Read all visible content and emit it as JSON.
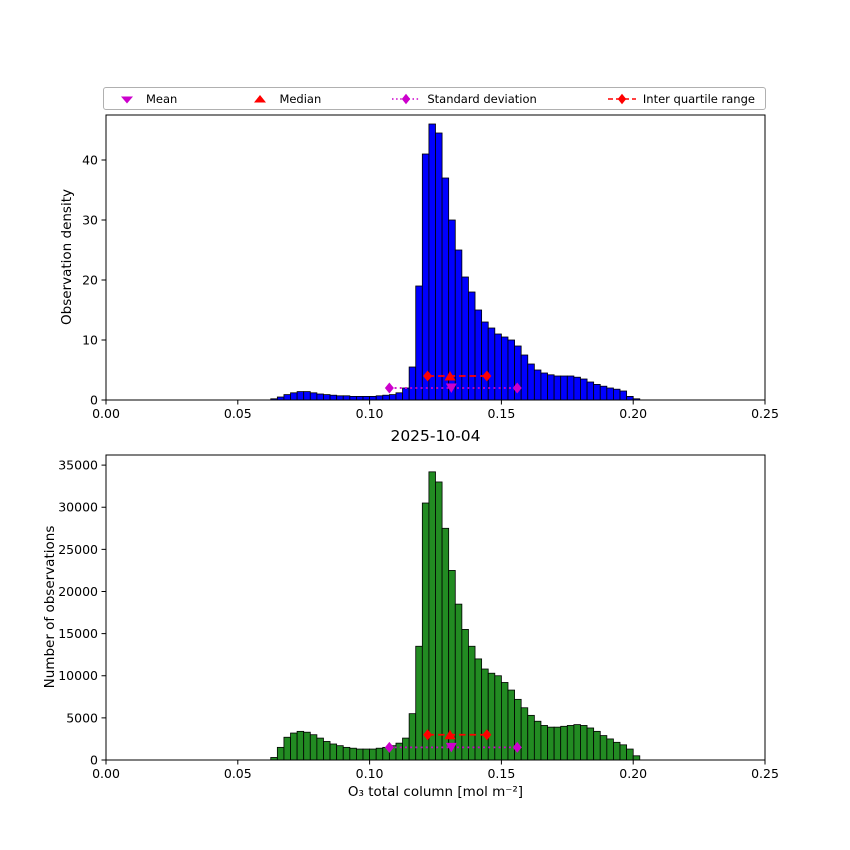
{
  "figure": {
    "colors": {
      "mean": "#cc00cc",
      "median": "#ff0000",
      "std": "#cc00cc",
      "iqr": "#ff0000",
      "bar_edge": "#000000"
    },
    "legend": {
      "items": [
        {
          "label": "Mean",
          "marker": "triangle-down",
          "color": "#cc00cc",
          "line": "none"
        },
        {
          "label": "Median",
          "marker": "triangle-up",
          "color": "#ff0000",
          "line": "none"
        },
        {
          "label": "Standard deviation",
          "marker": "diamond",
          "color": "#cc00cc",
          "line": "dotted"
        },
        {
          "label": "Inter quartile range",
          "marker": "diamond",
          "color": "#ff0000",
          "line": "dashed"
        }
      ]
    }
  },
  "chart_data": [
    {
      "type": "bar",
      "id": "density",
      "ylabel": "Observation density",
      "bar_color": "#0000ff",
      "bin_start": 0.0625,
      "bin_width": 0.0025,
      "values": [
        0.2,
        0.5,
        0.9,
        1.2,
        1.4,
        1.4,
        1.2,
        1.0,
        0.9,
        0.8,
        0.7,
        0.7,
        0.6,
        0.6,
        0.6,
        0.6,
        0.7,
        0.8,
        0.9,
        1.2,
        2.0,
        5.5,
        19,
        41,
        46,
        44.5,
        37,
        30,
        25,
        20.5,
        18,
        15,
        13,
        12,
        11,
        10.5,
        10,
        9,
        7.5,
        6,
        5,
        4.5,
        4.2,
        4.0,
        4.0,
        4.0,
        3.8,
        3.5,
        3.0,
        2.6,
        2.3,
        2.0,
        1.8,
        1.5,
        0.6,
        0.2
      ],
      "xlim": [
        0,
        0.25
      ],
      "ylim": [
        0,
        47.5
      ],
      "grid": false,
      "xtick_values": [
        0,
        0.05,
        0.1,
        0.15,
        0.2,
        0.25
      ],
      "xtick_labels": [
        "0.00",
        "0.05",
        "0.10",
        "0.15",
        "0.20",
        "0.25"
      ],
      "ytick_values": [
        0,
        10,
        20,
        30,
        40
      ],
      "ytick_labels": [
        "0",
        "10",
        "20",
        "30",
        "40"
      ],
      "stats": {
        "mean": 0.131,
        "median": 0.1305,
        "std_low": 0.1075,
        "std_high": 0.156,
        "q1": 0.122,
        "q3": 0.1445,
        "std_marker_y": 2,
        "iqr_marker_y": 4
      }
    },
    {
      "type": "bar",
      "id": "counts",
      "title": "2025-10-04",
      "ylabel": "Number of observations",
      "xlabel": "O₃ total column [mol m⁻²]",
      "bar_color": "#228B22",
      "bin_start": 0.0625,
      "bin_width": 0.0025,
      "values": [
        300,
        1500,
        2700,
        3200,
        3400,
        3300,
        3000,
        2600,
        2200,
        1900,
        1700,
        1500,
        1400,
        1300,
        1300,
        1300,
        1400,
        1500,
        1700,
        2000,
        2600,
        5500,
        13500,
        30500,
        34200,
        33000,
        27500,
        22500,
        18500,
        15500,
        13500,
        12000,
        10800,
        10300,
        10000,
        9200,
        8300,
        7200,
        6200,
        5300,
        4600,
        4100,
        3900,
        3900,
        4000,
        4100,
        4200,
        4100,
        3800,
        3400,
        2900,
        2500,
        2100,
        1800,
        1300,
        500
      ],
      "xlim": [
        0,
        0.25
      ],
      "ylim": [
        0,
        36200
      ],
      "grid": false,
      "xtick_values": [
        0,
        0.05,
        0.1,
        0.15,
        0.2,
        0.25
      ],
      "xtick_labels": [
        "0.00",
        "0.05",
        "0.10",
        "0.15",
        "0.20",
        "0.25"
      ],
      "ytick_values": [
        0,
        5000,
        10000,
        15000,
        20000,
        25000,
        30000,
        35000
      ],
      "ytick_labels": [
        "0",
        "5000",
        "10000",
        "15000",
        "20000",
        "25000",
        "30000",
        "35000"
      ],
      "stats": {
        "mean": 0.131,
        "median": 0.1305,
        "std_low": 0.1075,
        "std_high": 0.156,
        "q1": 0.122,
        "q3": 0.1445,
        "std_marker_y": 1500,
        "iqr_marker_y": 3000
      }
    }
  ]
}
